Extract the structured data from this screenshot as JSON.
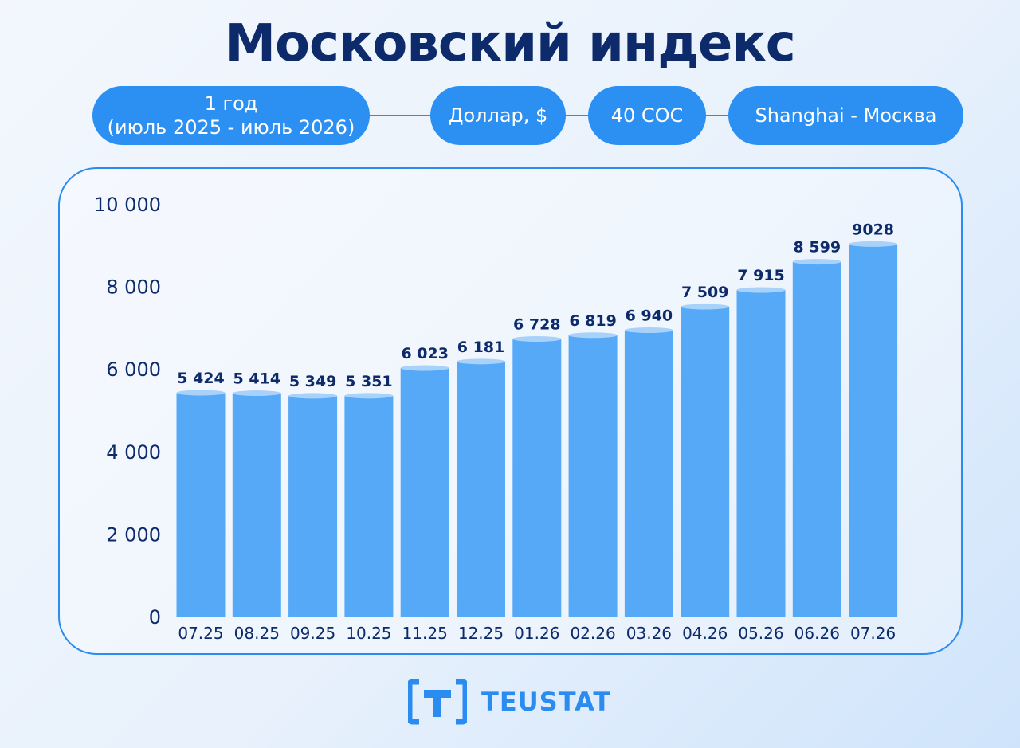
{
  "title": "Московский индекс",
  "filters": [
    {
      "line1": "1 год",
      "line2": "(июль 2025 - июль 2026)"
    },
    {
      "line1": "Доллар, $",
      "line2": ""
    },
    {
      "line1": "40 COC",
      "line2": ""
    },
    {
      "line1": "Shanghai - Москва",
      "line2": ""
    }
  ],
  "brand": "TEUSTAT",
  "colors": {
    "title": "#0d2b6b",
    "accent": "#2a8cf0",
    "bar": "#55a9f7",
    "bar_top": "#a9d2fb",
    "label": "#0d2b6b"
  },
  "chart_data": {
    "type": "bar",
    "title": "Московский индекс",
    "categories": [
      "07.25",
      "08.25",
      "09.25",
      "10.25",
      "11.25",
      "12.25",
      "01.26",
      "02.26",
      "03.26",
      "04.26",
      "05.26",
      "06.26",
      "07.26"
    ],
    "values": [
      5424,
      5414,
      5349,
      5351,
      6023,
      6181,
      6728,
      6819,
      6940,
      7509,
      7915,
      8599,
      9028
    ],
    "value_labels": [
      "5 424",
      "5 414",
      "5 349",
      "5 351",
      "6 023",
      "6 181",
      "6 728",
      "6 819",
      "6 940",
      "7 509",
      "7 915",
      "8 599",
      "9028"
    ],
    "ylim": [
      0,
      10000
    ],
    "yticks": [
      0,
      2000,
      4000,
      6000,
      8000,
      10000
    ],
    "ytick_labels": [
      "0",
      "2 000",
      "4 000",
      "6 000",
      "8 000",
      "10 000"
    ],
    "xlabel": "",
    "ylabel": "",
    "grid": false,
    "legend": "none"
  }
}
